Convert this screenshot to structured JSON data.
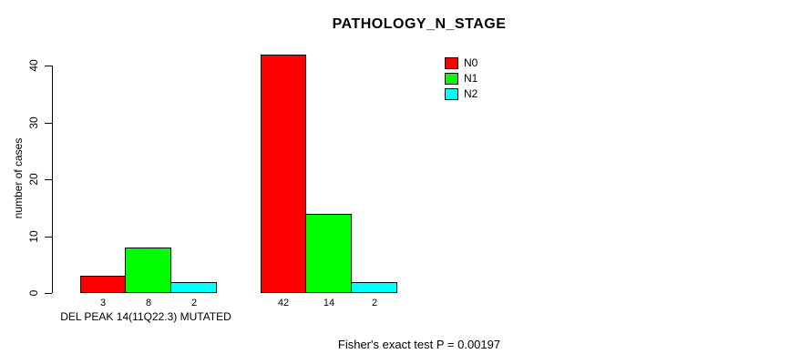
{
  "title": "PATHOLOGY_N_STAGE",
  "y_axis": {
    "label": "number of cases",
    "ticks": [
      "0",
      "10",
      "20",
      "30",
      "40"
    ]
  },
  "x_axis": {
    "group_label": "DEL PEAK 14(11Q22.3) MUTATED"
  },
  "footer": "Fisher's exact test P = 0.00197",
  "legend": {
    "items": [
      {
        "label": "N0",
        "color": "#ff0000"
      },
      {
        "label": "N1",
        "color": "#00ff00"
      },
      {
        "label": "N2",
        "color": "#00ffff"
      }
    ]
  },
  "chart_data": {
    "type": "bar",
    "title": "PATHOLOGY_N_STAGE",
    "xlabel": "DEL PEAK 14(11Q22.3) MUTATED",
    "ylabel": "number of cases",
    "categories": [
      "DEL PEAK 14(11Q22.3) MUTATED",
      ""
    ],
    "series": [
      {
        "name": "N0",
        "color": "#ff0000",
        "values": [
          3,
          42
        ]
      },
      {
        "name": "N1",
        "color": "#00ff00",
        "values": [
          8,
          14
        ]
      },
      {
        "name": "N2",
        "color": "#00ffff",
        "values": [
          2,
          2
        ]
      }
    ],
    "ylim": [
      0,
      40
    ],
    "y_tick_values": [
      0,
      10,
      20,
      30,
      40
    ],
    "grid": false,
    "legend_position": "top-right",
    "annotation": "Fisher's exact test P = 0.00197"
  }
}
